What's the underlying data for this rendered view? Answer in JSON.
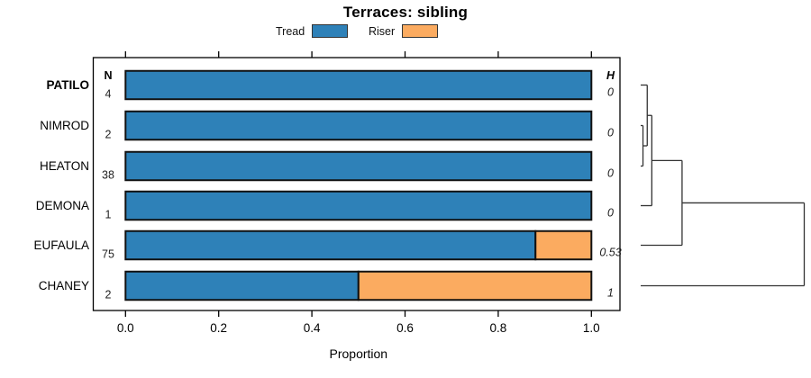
{
  "title": "Terraces: sibling",
  "legend": {
    "items": [
      {
        "label": "Tread",
        "color": "#2e81b8"
      },
      {
        "label": "Riser",
        "color": "#fbab60"
      }
    ]
  },
  "axis": {
    "label": "Proportion",
    "tick_labels": [
      "0.0",
      "0.2",
      "0.4",
      "0.6",
      "0.8",
      "1.0"
    ],
    "tick_values": [
      0,
      0.2,
      0.4,
      0.6,
      0.8,
      1.0
    ],
    "range": [
      0,
      1
    ]
  },
  "table": {
    "n_header": "N",
    "h_header": "H"
  },
  "chart_data": {
    "type": "bar",
    "orientation": "horizontal-stacked",
    "title": "Terraces: sibling",
    "xlabel": "Proportion",
    "xlim": [
      0,
      1
    ],
    "categories": [
      "PATILO",
      "NIMROD",
      "HEATON",
      "DEMONA",
      "EUFAULA",
      "CHANEY"
    ],
    "highlighted_category": "PATILO",
    "series": [
      {
        "name": "Tread",
        "color": "#2e81b8",
        "values": [
          1,
          1,
          1,
          1,
          0.88,
          0.5
        ]
      },
      {
        "name": "Riser",
        "color": "#fbab60",
        "values": [
          0,
          0,
          0,
          0,
          0.12,
          0.5
        ]
      }
    ],
    "N": [
      "4",
      "2",
      "38",
      "1",
      "75",
      "2"
    ],
    "H": [
      "0",
      "0",
      "0",
      "0",
      "0.53",
      "1"
    ],
    "dendrogram": {
      "leaves": [
        "PATILO",
        "NIMROD",
        "HEATON",
        "DEMONA",
        "EUFAULA",
        "CHANEY"
      ],
      "merges": [
        {
          "id": "M0",
          "children": [
            "L1",
            "L2"
          ],
          "height": 0.014
        },
        {
          "id": "M1",
          "children": [
            "L0",
            "M0"
          ],
          "height": 0.04
        },
        {
          "id": "M2",
          "children": [
            "M1",
            "L3"
          ],
          "height": 0.068
        },
        {
          "id": "M3",
          "children": [
            "M2",
            "L4"
          ],
          "height": 0.253
        },
        {
          "id": "M4",
          "children": [
            "M3",
            "L5"
          ],
          "height": 1.0
        }
      ]
    },
    "colors": {
      "tread": "#2e81b8",
      "riser": "#fbab60",
      "bar_border": "#111111",
      "box_border": "#000000",
      "dendrogram_line": "#333333"
    }
  }
}
